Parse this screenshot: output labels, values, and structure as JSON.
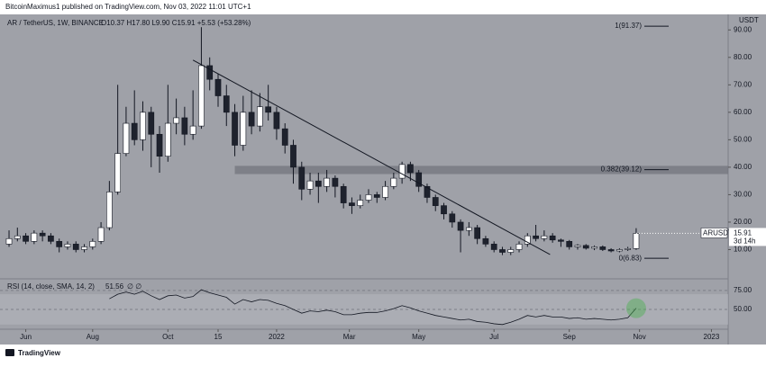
{
  "header": {
    "publisher": "BitcoinMaximus1 published on TradingView.com, Nov 03, 2022 11:01 UTC+1"
  },
  "chart_data": {
    "type": "candlestick",
    "title": "AR / TetherUS, 1W, BINANCE",
    "ohlc_legend": "O10.37 H17.80 L9.90 C15.91 +5.53 (+53.28%)",
    "currency": "USDT",
    "open": [
      12,
      14,
      15,
      13,
      16,
      15,
      13,
      11,
      12,
      10,
      11,
      13,
      18,
      31,
      45,
      56,
      50,
      60,
      52,
      44,
      56,
      58,
      52,
      55,
      77,
      72,
      66,
      60,
      48,
      60,
      55,
      62,
      60,
      54,
      48,
      40,
      32,
      35,
      33,
      36,
      33,
      27,
      26,
      28,
      30,
      29,
      33,
      36,
      41,
      38,
      33,
      29,
      26,
      23,
      20,
      17,
      18,
      14,
      12,
      10,
      9,
      10,
      12,
      15,
      14,
      15,
      13.5,
      13,
      11,
      11.5,
      10.5,
      11,
      10,
      9.5,
      10,
      10.37
    ],
    "high": [
      17,
      18,
      16,
      17,
      17,
      16,
      14,
      13,
      13,
      12,
      14,
      20,
      35,
      70,
      62,
      68,
      64,
      62,
      55,
      70,
      65,
      62,
      68,
      91,
      80,
      74,
      70,
      63,
      66,
      68,
      67,
      70,
      62,
      56,
      50,
      42,
      38,
      38,
      39,
      37,
      34,
      29,
      30,
      32,
      31,
      35,
      38,
      42,
      42,
      39,
      34,
      30,
      27,
      24,
      21,
      20,
      19,
      15,
      13,
      11,
      11,
      13,
      16,
      19,
      17,
      16,
      14,
      13.5,
      12,
      12,
      11.5,
      11.5,
      10.5,
      10.5,
      11,
      17.8
    ],
    "low": [
      11,
      13,
      12,
      12,
      13,
      12,
      9,
      10,
      9,
      9,
      10,
      12,
      17,
      30,
      44,
      48,
      46,
      40,
      38,
      42,
      52,
      48,
      50,
      54,
      68,
      62,
      55,
      44,
      46,
      52,
      53,
      57,
      50,
      45,
      34,
      28,
      30,
      27,
      31,
      29,
      25,
      23,
      25,
      27,
      27,
      28,
      32,
      34,
      35,
      31,
      27,
      24,
      21,
      18,
      9,
      15,
      12,
      11,
      9,
      8,
      8,
      9,
      11,
      13,
      13,
      12.5,
      11,
      10,
      10,
      10,
      9.8,
      9.5,
      9,
      9,
      9.5,
      9.9
    ],
    "close": [
      14,
      15,
      13,
      16,
      15,
      13,
      11,
      12,
      10,
      11,
      13,
      18,
      31,
      45,
      56,
      50,
      60,
      52,
      44,
      56,
      58,
      52,
      55,
      77,
      72,
      66,
      60,
      48,
      60,
      55,
      62,
      60,
      54,
      48,
      40,
      32,
      35,
      33,
      36,
      33,
      27,
      26,
      28,
      30,
      29,
      33,
      36,
      41,
      38,
      33,
      29,
      26,
      23,
      20,
      17,
      18,
      14,
      12,
      10,
      9,
      10,
      12,
      15,
      14,
      15,
      13.5,
      13,
      11,
      11.5,
      10.5,
      11,
      10,
      9.5,
      10,
      10.37,
      15.91
    ],
    "up_color": "#ffffff",
    "down_color": "#1e222d",
    "xlim": [
      -1.08,
      86
    ],
    "xticks": [
      {
        "value": 2,
        "label": "Jun"
      },
      {
        "value": 10,
        "label": "Aug"
      },
      {
        "value": 19,
        "label": "Oct"
      },
      {
        "value": 25,
        "label": "15"
      },
      {
        "value": 32,
        "label": "2022"
      },
      {
        "value": 40.7,
        "label": "Mar"
      },
      {
        "value": 49,
        "label": "May"
      },
      {
        "value": 58,
        "label": "Jul"
      },
      {
        "value": 67,
        "label": "Sep"
      },
      {
        "value": 75.4,
        "label": "Nov"
      },
      {
        "value": 84,
        "label": "2023"
      }
    ],
    "ylim": [
      0,
      95
    ],
    "yticks": [
      {
        "value": 10,
        "label": "10.00"
      },
      {
        "value": 20,
        "label": "20.00"
      },
      {
        "value": 30,
        "label": "30.00"
      },
      {
        "value": 40,
        "label": "40.00"
      },
      {
        "value": 50,
        "label": "50.00"
      },
      {
        "value": 60,
        "label": "60.00"
      },
      {
        "value": 70,
        "label": "70.00"
      },
      {
        "value": 80,
        "label": "80.00"
      },
      {
        "value": 90,
        "label": "90.00"
      }
    ],
    "fib_levels": [
      {
        "label": "1(91.37)",
        "value": 91.37
      },
      {
        "label": "0.382(39.12)",
        "value": 39.12
      },
      {
        "label": "0(6.83)",
        "value": 6.83
      }
    ],
    "resistance_zone": {
      "x_start": 27,
      "ylim": [
        37.5,
        40.5
      ]
    },
    "trendline": {
      "x": [
        22,
        64.7
      ],
      "y": [
        79,
        8.2
      ]
    },
    "last_price": {
      "symbol": "ARUSDT",
      "value": 15.91,
      "countdown": "3d 14h"
    },
    "rsi": {
      "title": "RSI (14, close, SMA, 14, 2)",
      "extra": "∅ ∅",
      "color": "#131722",
      "values": [
        null,
        null,
        null,
        null,
        null,
        null,
        null,
        null,
        null,
        null,
        null,
        null,
        64,
        70,
        73,
        70,
        74,
        68,
        63,
        68,
        69,
        65,
        67,
        76,
        72,
        69,
        66,
        57,
        63,
        60,
        63,
        62,
        58,
        55,
        50,
        45,
        48,
        47,
        49,
        47,
        43,
        43,
        45,
        46,
        46,
        48,
        51,
        55,
        52,
        48,
        45,
        42,
        40,
        38,
        36,
        37,
        34,
        33,
        31,
        30,
        33,
        37,
        42,
        40,
        42,
        40,
        40,
        38,
        39,
        37,
        38,
        37,
        36,
        37,
        39,
        51.56
      ],
      "ylim": [
        25,
        88
      ],
      "yticks": [
        {
          "value": 75,
          "label": "75.00"
        },
        {
          "value": 50,
          "label": "50.00"
        }
      ],
      "band": [
        30,
        70
      ]
    }
  },
  "footer": {
    "brand": "TradingView"
  }
}
